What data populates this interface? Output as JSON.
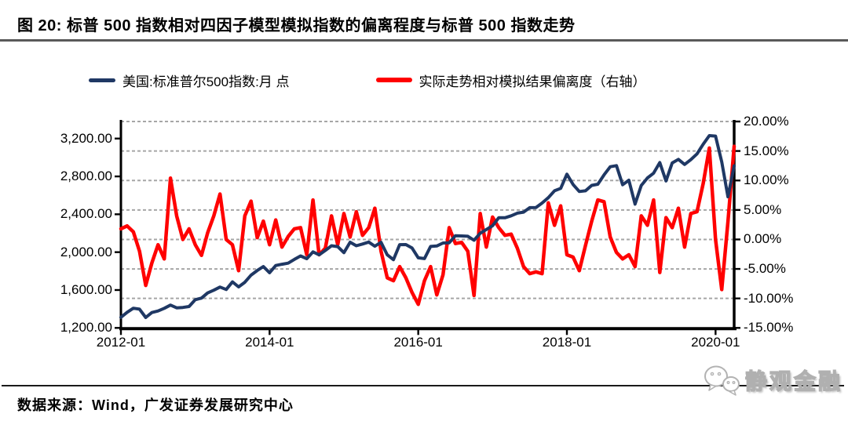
{
  "title": "图 20:  标普 500 指数相对四因子模型模拟指数的偏离程度与标普 500 指数走势",
  "legend": [
    {
      "label": "美国:标准普尔500指数:月 点",
      "color": "#1F3864"
    },
    {
      "label": "实际走势相对模拟结果偏离度（右轴）",
      "color": "#FF0000"
    }
  ],
  "footer": {
    "source": "数据来源：Wind，广发证券发展研究中心"
  },
  "logo": {
    "text": "静观金融"
  },
  "colors": {
    "sp500_line": "#1F3864",
    "deviation_line": "#FF0000",
    "gridline": "#a6a6a6",
    "axis": "#000000"
  },
  "chart_data": {
    "type": "line",
    "title": "标普500指数相对四因子模型模拟指数的偏离程度与标普500指数走势",
    "x_start": "2012-01",
    "x_end": "2020-04",
    "frequency": "monthly",
    "n_points": 100,
    "x_axis": {
      "tick_labels": [
        "2012-01",
        "2014-01",
        "2016-01",
        "2018-01",
        "2020-01"
      ],
      "tick_month_indices": [
        0,
        24,
        48,
        72,
        96
      ]
    },
    "left_axis": {
      "title": "美国:标准普尔500指数:月 点",
      "min": 1200,
      "max": 3380,
      "tick_values": [
        3200,
        2800,
        2400,
        2000,
        1600,
        1200
      ],
      "tick_labels": [
        "3,200.00",
        "2,800.00",
        "2,400.00",
        "2,000.00",
        "1,600.00",
        "1,200.00"
      ]
    },
    "right_axis": {
      "title": "实际走势相对模拟结果偏离度",
      "min": -15,
      "max": 20,
      "tick_values": [
        20,
        15,
        10,
        5,
        0,
        -5,
        -10,
        -15
      ],
      "tick_labels": [
        "20.00%",
        "15.00%",
        "10.00%",
        "5.00%",
        "0.00%",
        "-5.00%",
        "-10.00%",
        "-15.00%"
      ],
      "gridline_values": [
        20,
        15,
        10,
        5,
        0,
        -5,
        -10
      ]
    },
    "grid": "horizontal-dashed",
    "legend_position": "top",
    "series": [
      {
        "name": "美国:标准普尔500指数:月 点",
        "axis": "left",
        "color": "#1F3864",
        "values": [
          1312,
          1365,
          1408,
          1398,
          1310,
          1362,
          1379,
          1407,
          1441,
          1412,
          1416,
          1426,
          1498,
          1515,
          1569,
          1598,
          1631,
          1606,
          1686,
          1633,
          1682,
          1757,
          1806,
          1848,
          1783,
          1859,
          1872,
          1884,
          1924,
          1960,
          1931,
          2003,
          1972,
          2018,
          2068,
          2059,
          1995,
          2105,
          2068,
          2086,
          2107,
          2063,
          2104,
          1972,
          1920,
          2079,
          2080,
          2044,
          1940,
          1932,
          2060,
          2065,
          2097,
          2099,
          2174,
          2171,
          2168,
          2126,
          2199,
          2239,
          2279,
          2364,
          2363,
          2384,
          2412,
          2423,
          2470,
          2472,
          2519,
          2575,
          2648,
          2674,
          2824,
          2714,
          2641,
          2648,
          2705,
          2718,
          2816,
          2902,
          2914,
          2712,
          2760,
          2507,
          2704,
          2784,
          2834,
          2946,
          2752,
          2942,
          2980,
          2926,
          2977,
          3038,
          3141,
          3231,
          3226,
          2954,
          2585,
          2912
        ]
      },
      {
        "name": "实际走势相对模拟结果偏离度（右轴）",
        "axis": "right",
        "color": "#FF0000",
        "unit": "%",
        "values": [
          1.8,
          2.3,
          1.3,
          -2.0,
          -7.8,
          -4.0,
          -0.9,
          -3.3,
          10.4,
          4.0,
          0.0,
          1.8,
          -0.9,
          -2.7,
          1.1,
          4.0,
          7.7,
          0.0,
          -0.9,
          -5.3,
          4.0,
          6.5,
          0.3,
          3.1,
          -0.9,
          3.3,
          -1.3,
          0.5,
          1.8,
          2.0,
          -2.6,
          6.7,
          -2.6,
          -1.5,
          4.0,
          -0.9,
          4.4,
          0.4,
          4.7,
          0.7,
          2.0,
          5.3,
          -2.0,
          -6.5,
          -7.0,
          -4.6,
          -6.5,
          -9.0,
          -11.0,
          -7.0,
          -4.6,
          -9.4,
          -6.0,
          2.0,
          -0.7,
          -0.5,
          -2.0,
          -9.5,
          4.4,
          -1.3,
          3.8,
          2.0,
          0.7,
          0.9,
          -1.5,
          -4.6,
          -5.8,
          -5.5,
          -5.8,
          6.2,
          2.4,
          5.7,
          -2.6,
          -3.0,
          -5.3,
          -1.0,
          3.1,
          6.7,
          6.4,
          0.4,
          -2.2,
          -3.3,
          -2.6,
          -4.6,
          4.0,
          2.4,
          6.7,
          -5.6,
          3.7,
          2.0,
          5.3,
          -1.3,
          4.4,
          4.7,
          9.5,
          15.5,
          0.0,
          -8.5,
          3.0,
          15.8
        ]
      }
    ]
  }
}
